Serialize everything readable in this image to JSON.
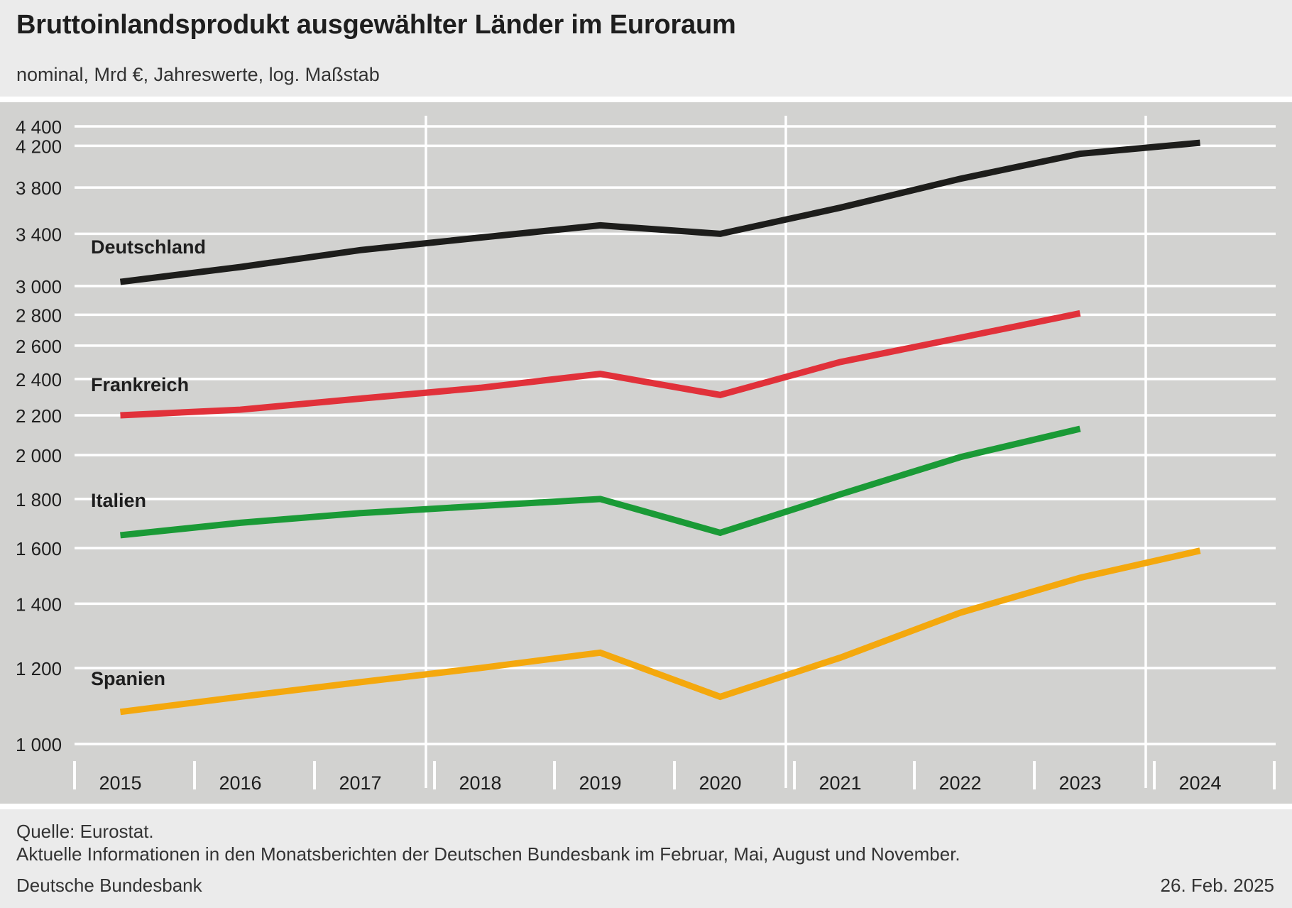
{
  "header": {
    "title": "Bruttoinlandsprodukt ausgewählter Länder im Euroraum",
    "subtitle": "nominal, Mrd €, Jahreswerte, log. Maßstab"
  },
  "footer": {
    "source": "Quelle: Eurostat.",
    "info": "Aktuelle Informationen in den Monatsberichten der Deutschen Bundesbank im Februar, Mai, August und November.",
    "publisher": "Deutsche Bundesbank",
    "date": "26. Feb. 2025"
  },
  "chart_data": {
    "type": "line",
    "title": "Bruttoinlandsprodukt ausgewählter Länder im Euroraum",
    "subtitle": "nominal, Mrd €, Jahreswerte, log. Maßstab",
    "y_scale": "log",
    "ylim": [
      1000,
      4400
    ],
    "y_ticks": [
      1000,
      1200,
      1400,
      1600,
      1800,
      2000,
      2200,
      2400,
      2600,
      2800,
      3000,
      3400,
      3800,
      4200,
      4400
    ],
    "y_tick_labels": [
      "1 000",
      "1 200",
      "1 400",
      "1 600",
      "1 800",
      "2 000",
      "2 200",
      "2 400",
      "2 600",
      "2 800",
      "3 000",
      "3 400",
      "3 800",
      "4 200",
      "4 400"
    ],
    "categories": [
      "2015",
      "2016",
      "2017",
      "2018",
      "2019",
      "2020",
      "2021",
      "2022",
      "2023",
      "2024"
    ],
    "grid": true,
    "series": [
      {
        "name": "Deutschland",
        "color": "#1d1d1b",
        "values": [
          3030,
          3140,
          3270,
          3370,
          3470,
          3400,
          3620,
          3880,
          4120,
          4230
        ]
      },
      {
        "name": "Frankreich",
        "color": "#e1313a",
        "values": [
          2200,
          2230,
          2290,
          2350,
          2430,
          2310,
          2500,
          2650,
          2810,
          null
        ]
      },
      {
        "name": "Italien",
        "color": "#1a9a36",
        "values": [
          1650,
          1700,
          1740,
          1770,
          1800,
          1660,
          1820,
          1990,
          2130,
          null
        ]
      },
      {
        "name": "Spanien",
        "color": "#f4a80d",
        "values": [
          1080,
          1120,
          1160,
          1200,
          1245,
          1120,
          1230,
          1370,
          1490,
          1590
        ]
      }
    ]
  }
}
